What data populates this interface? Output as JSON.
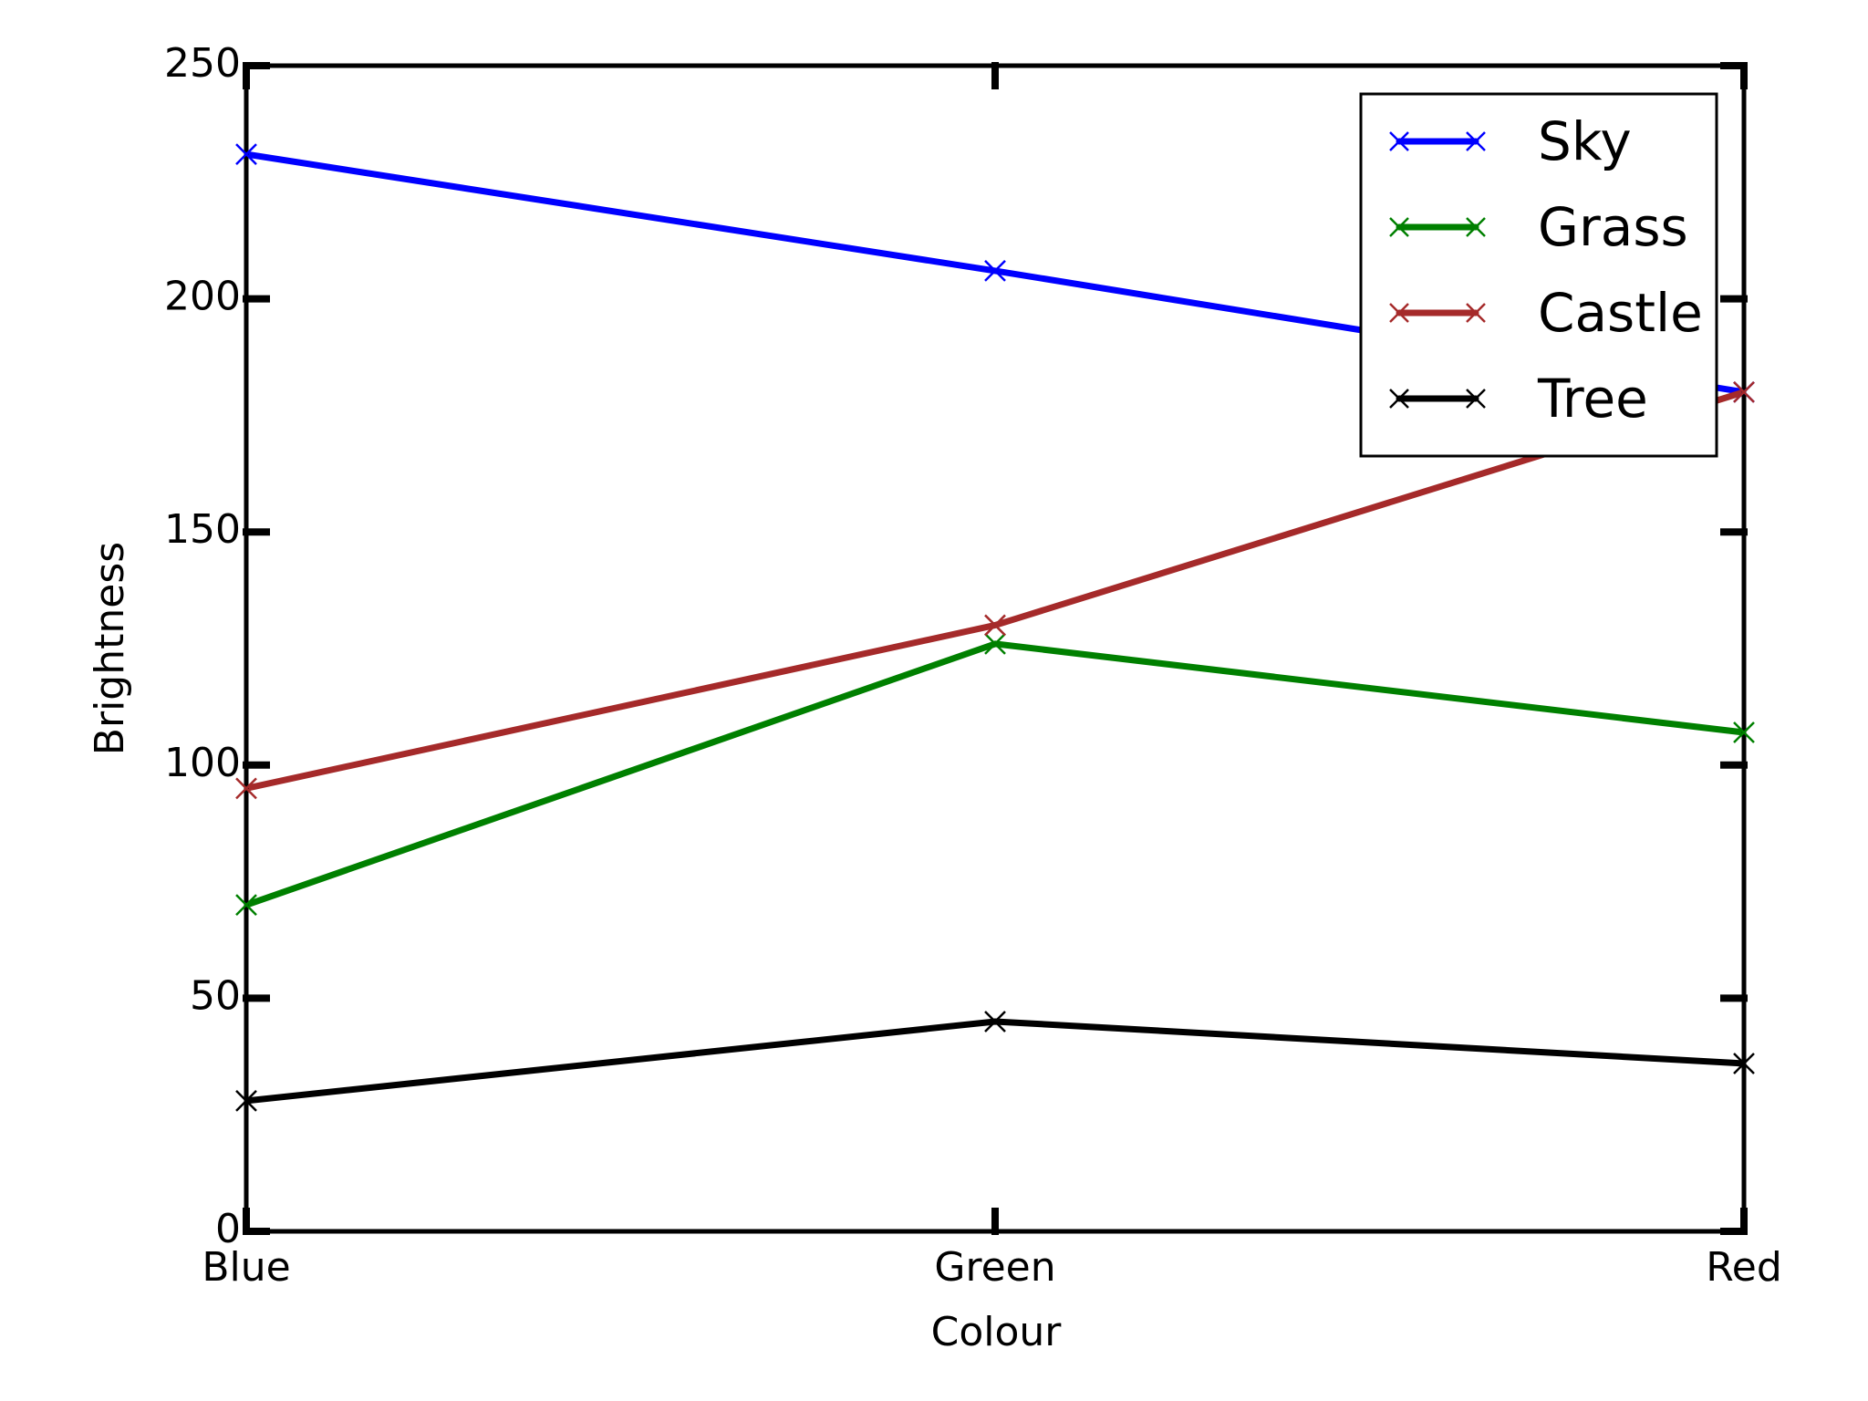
{
  "chart_data": {
    "type": "line",
    "title": "",
    "xlabel": "Colour",
    "ylabel": "Brightness",
    "categories": [
      "Blue",
      "Green",
      "Red"
    ],
    "ylim": [
      0,
      250
    ],
    "yticks": [
      0,
      50,
      100,
      150,
      200,
      250
    ],
    "grid": false,
    "legend_position": "top-right",
    "marker": "x",
    "series": [
      {
        "name": "Sky",
        "color": "#0000ff",
        "values": [
          231,
          206,
          180
        ]
      },
      {
        "name": "Grass",
        "color": "#008000",
        "values": [
          70,
          126,
          107
        ]
      },
      {
        "name": "Castle",
        "color": "#a52a2a",
        "values": [
          95,
          130,
          180
        ]
      },
      {
        "name": "Tree",
        "color": "#000000",
        "values": [
          28,
          45,
          36
        ]
      }
    ]
  }
}
